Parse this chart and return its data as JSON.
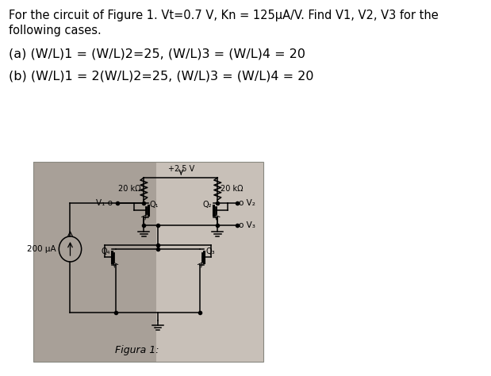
{
  "title_line1": "For the circuit of Figure 1. Vt=0.7 V, Kn = 125μA/V. Find V1, V2, V3 for the",
  "title_line2": "following cases.",
  "case_a": "(a) (W/L)1 = (W/L)2=25, (W/L)3 = (W/L)4 = 20",
  "case_b": "(b) (W/L)1 = 2(W/L)2=25, (W/L)3 = (W/L)4 = 20",
  "figura_label": "Figura 1:",
  "bg_color": "#ffffff",
  "circuit_bg_left": "#b8b0a8",
  "circuit_bg_right": "#d0c8c0",
  "text_color": "#000000",
  "font_size_title": 10.5,
  "font_size_cases": 11.5,
  "font_size_circuit": 7.5
}
